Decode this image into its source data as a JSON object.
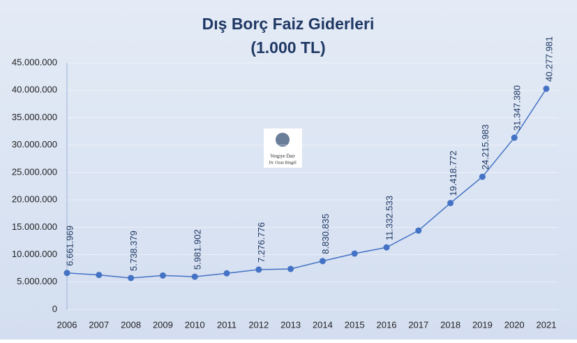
{
  "chart_data": {
    "type": "line",
    "title": "Dış Borç Faiz Giderleri",
    "subtitle": "(1.000 TL)",
    "watermark": {
      "line1": "Vergiye Dair",
      "line2": "Dr. Ozan Bingöl"
    },
    "categories": [
      "2006",
      "2007",
      "2008",
      "2009",
      "2010",
      "2011",
      "2012",
      "2013",
      "2014",
      "2015",
      "2016",
      "2017",
      "2018",
      "2019",
      "2020",
      "2021"
    ],
    "values": [
      6661969,
      6300000,
      5738379,
      6200000,
      5981902,
      6600000,
      7276776,
      7400000,
      8830835,
      10200000,
      11332533,
      14400000,
      19418772,
      24215983,
      31347380,
      40277981
    ],
    "value_labels": [
      "6.661.969",
      null,
      "5.738.379",
      null,
      "5.981.902",
      null,
      "7.276.776",
      null,
      "8.830.835",
      null,
      "11.332.533",
      null,
      "19.418.772",
      "24.215.983",
      "31.347.380",
      "40.277.981"
    ],
    "color": "#4472c4",
    "ylim": [
      0,
      45000000
    ],
    "yticks": [
      0,
      {
        "value": 5000000,
        "label": "5.000.000"
      },
      {
        "value": 10000000,
        "label": "10.000.000"
      },
      {
        "value": 15000000,
        "label": "15.000.000"
      },
      {
        "value": 20000000,
        "label": "20.000.000"
      },
      {
        "value": 25000000,
        "label": "25.000.000"
      },
      {
        "value": 30000000,
        "label": "30.000.000"
      },
      {
        "value": 35000000,
        "label": "35.000.000"
      },
      {
        "value": 40000000,
        "label": "40.000.000"
      },
      {
        "value": 45000000,
        "label": "45.000.000"
      }
    ],
    "grid": true
  }
}
